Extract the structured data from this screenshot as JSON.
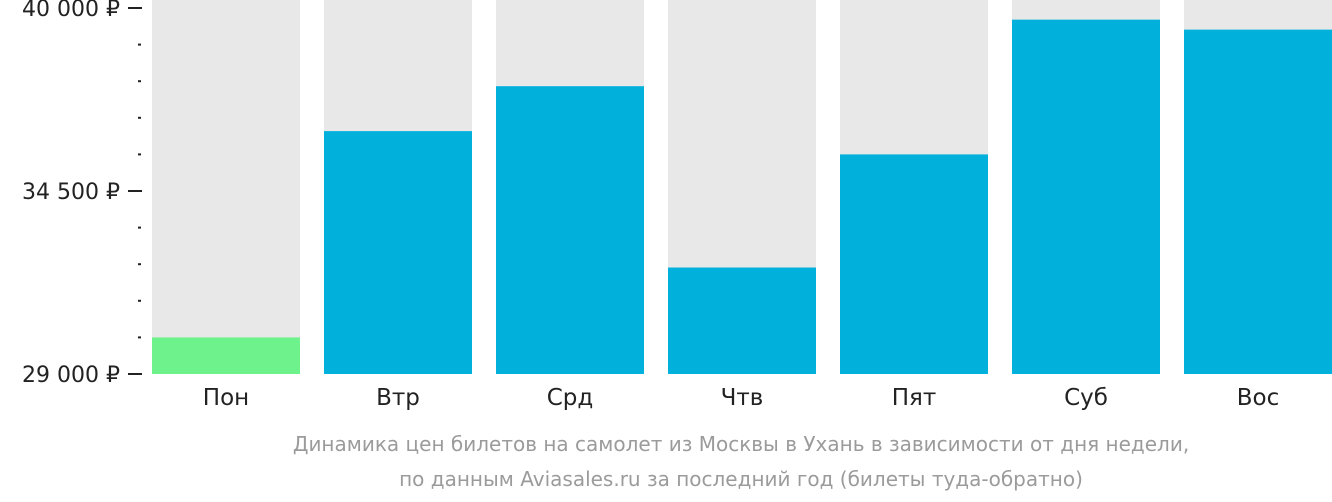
{
  "chart_data": {
    "type": "bar",
    "title": "",
    "xlabel": "",
    "ylabel": "",
    "categories": [
      "Пон",
      "Втр",
      "Срд",
      "Чтв",
      "Пят",
      "Суб",
      "Вос"
    ],
    "values": [
      30100,
      36300,
      37650,
      32200,
      35600,
      39650,
      39350
    ],
    "ylim": [
      29000,
      40000
    ],
    "y_ticks": [
      {
        "value": 29000,
        "label": "29 000 ₽"
      },
      {
        "value": 34500,
        "label": "34 500 ₽"
      },
      {
        "value": 40000,
        "label": "40 000 ₽"
      }
    ],
    "minor_tick_step": 1100,
    "colors": {
      "bar": "#02b0dc",
      "lowest_bar": "#6ef28b",
      "background_bar": "#e8e8e8",
      "axis_text": "#222222"
    },
    "lowest_index": 0
  },
  "caption": {
    "line1": "Динамика цен билетов на самолет из Москвы в Ухань в зависимости от дня недели,",
    "line2": "по данным Aviasales.ru за последний год (билеты туда-обратно)"
  }
}
